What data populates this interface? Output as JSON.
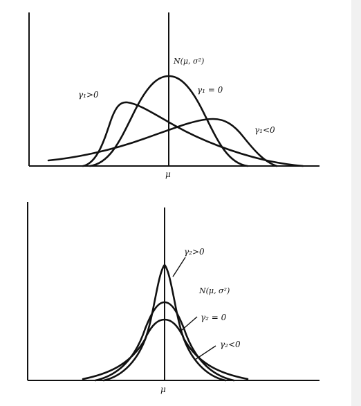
{
  "top_panel": {
    "center_label": "μ",
    "labels": {
      "normal": "N(μ, σ²)",
      "gamma1_pos": "γ₁>0",
      "gamma1_zero": "γ₁ = 0",
      "gamma1_neg": "γ₁<0"
    }
  },
  "bottom_panel": {
    "center_label": "μ",
    "labels": {
      "gamma2_pos": "γ₂>0",
      "normal": "N(μ, σ²)",
      "gamma2_zero": "γ₂ = 0",
      "gamma2_neg": "γ₂<0"
    }
  }
}
